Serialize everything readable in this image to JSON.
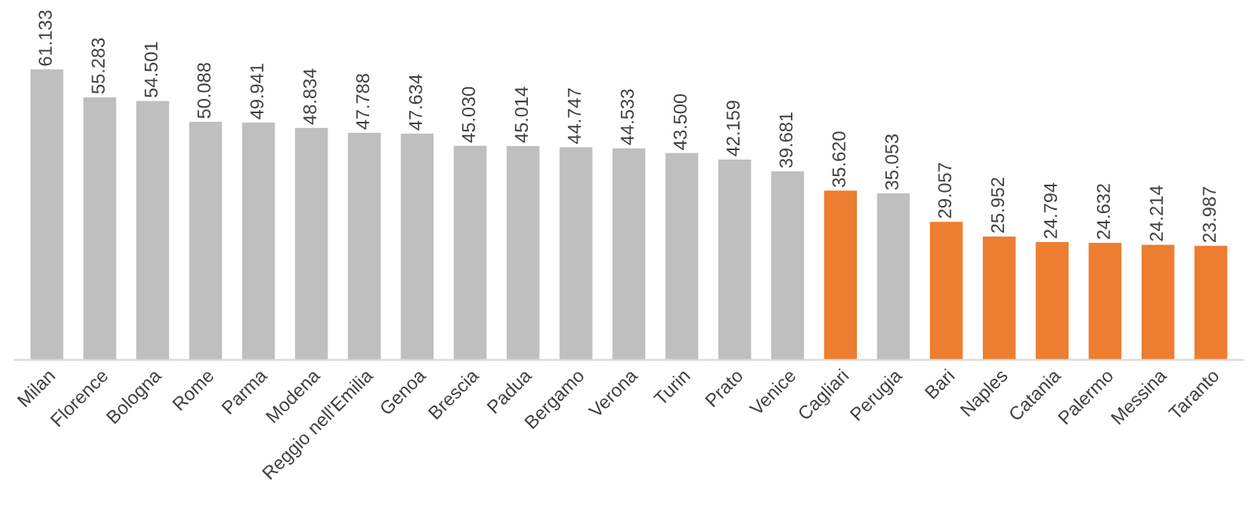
{
  "chart_data": {
    "type": "bar",
    "categories": [
      "Milan",
      "Florence",
      "Bologna",
      "Rome",
      "Parma",
      "Modena",
      "Reggio nell'Emilia",
      "Genoa",
      "Brescia",
      "Padua",
      "Bergamo",
      "Verona",
      "Turin",
      "Prato",
      "Venice",
      "Cagliari",
      "Perugia",
      "Bari",
      "Naples",
      "Catania",
      "Palermo",
      "Messina",
      "Taranto"
    ],
    "values": [
      61.133,
      55.283,
      54.501,
      50.088,
      49.941,
      48.834,
      47.788,
      47.634,
      45.03,
      45.014,
      44.747,
      44.533,
      43.5,
      42.159,
      39.681,
      35.62,
      35.053,
      29.057,
      25.952,
      24.794,
      24.632,
      24.214,
      23.987
    ],
    "value_labels": [
      "61.133",
      "55.283",
      "54.501",
      "50.088",
      "49.941",
      "48.834",
      "47.788",
      "47.634",
      "45.030",
      "45.014",
      "44.747",
      "44.533",
      "43.500",
      "42.159",
      "39.681",
      "35.620",
      "35.053",
      "29.057",
      "25.952",
      "24.794",
      "24.632",
      "24.214",
      "23.987"
    ],
    "colors": [
      "#bfbfbf",
      "#bfbfbf",
      "#bfbfbf",
      "#bfbfbf",
      "#bfbfbf",
      "#bfbfbf",
      "#bfbfbf",
      "#bfbfbf",
      "#bfbfbf",
      "#bfbfbf",
      "#bfbfbf",
      "#bfbfbf",
      "#bfbfbf",
      "#bfbfbf",
      "#bfbfbf",
      "#ed7d31",
      "#bfbfbf",
      "#ed7d31",
      "#ed7d31",
      "#ed7d31",
      "#ed7d31",
      "#ed7d31",
      "#ed7d31"
    ]
  }
}
